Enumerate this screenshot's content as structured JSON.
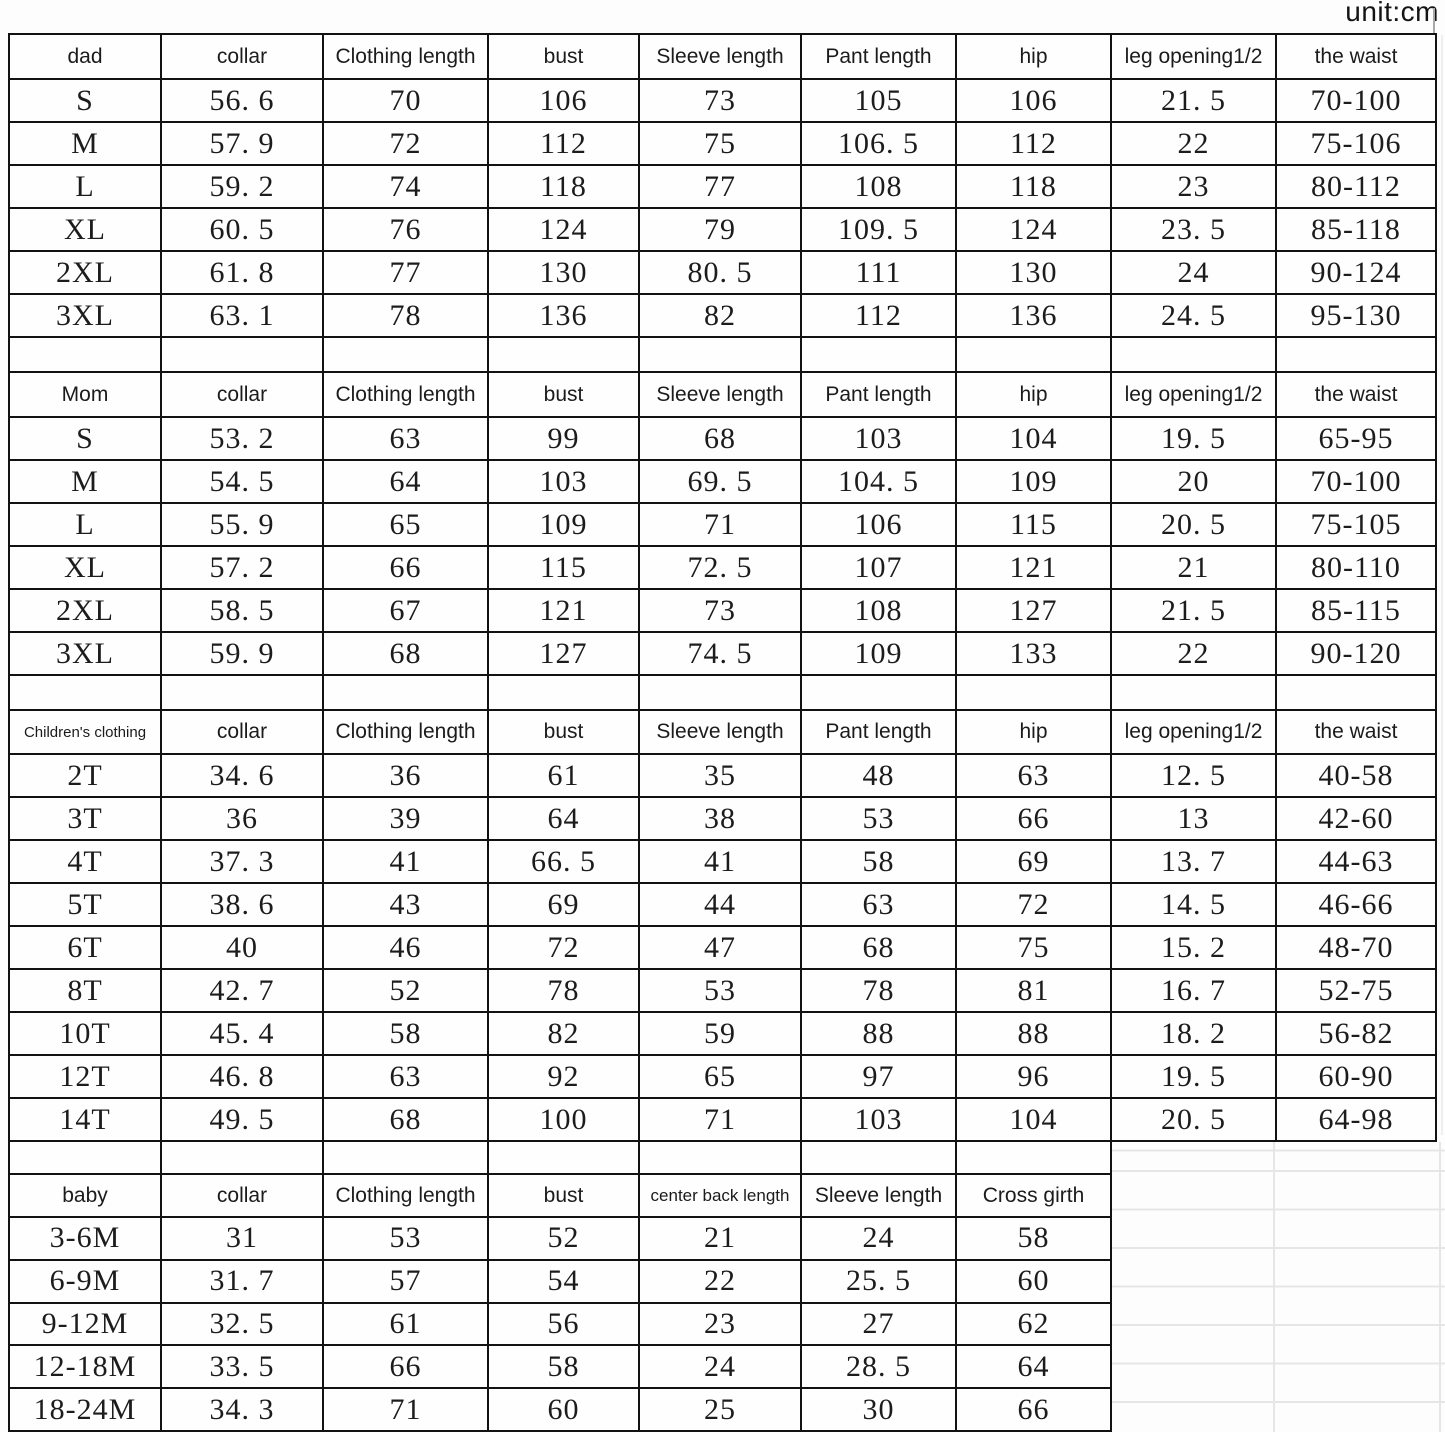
{
  "unit_label": "unit:cm",
  "table": {
    "sections": [
      {
        "name": "dad",
        "columns": [
          "dad",
          "collar",
          "Clothing length",
          "bust",
          "Sleeve length",
          "Pant length",
          "hip",
          "leg opening1/2",
          "the waist"
        ],
        "rows": [
          [
            "S",
            "56. 6",
            "70",
            "106",
            "73",
            "105",
            "106",
            "21. 5",
            "70-100"
          ],
          [
            "M",
            "57. 9",
            "72",
            "112",
            "75",
            "106. 5",
            "112",
            "22",
            "75-106"
          ],
          [
            "L",
            "59. 2",
            "74",
            "118",
            "77",
            "108",
            "118",
            "23",
            "80-112"
          ],
          [
            "XL",
            "60. 5",
            "76",
            "124",
            "79",
            "109. 5",
            "124",
            "23. 5",
            "85-118"
          ],
          [
            "2XL",
            "61. 8",
            "77",
            "130",
            "80. 5",
            "111",
            "130",
            "24",
            "90-124"
          ],
          [
            "3XL",
            "63. 1",
            "78",
            "136",
            "82",
            "112",
            "136",
            "24. 5",
            "95-130"
          ]
        ]
      },
      {
        "name": "Mom",
        "columns": [
          "Mom",
          "collar",
          "Clothing length",
          "bust",
          "Sleeve length",
          "Pant length",
          "hip",
          "leg opening1/2",
          "the waist"
        ],
        "rows": [
          [
            "S",
            "53. 2",
            "63",
            "99",
            "68",
            "103",
            "104",
            "19. 5",
            "65-95"
          ],
          [
            "M",
            "54. 5",
            "64",
            "103",
            "69. 5",
            "104. 5",
            "109",
            "20",
            "70-100"
          ],
          [
            "L",
            "55. 9",
            "65",
            "109",
            "71",
            "106",
            "115",
            "20. 5",
            "75-105"
          ],
          [
            "XL",
            "57. 2",
            "66",
            "115",
            "72. 5",
            "107",
            "121",
            "21",
            "80-110"
          ],
          [
            "2XL",
            "58. 5",
            "67",
            "121",
            "73",
            "108",
            "127",
            "21. 5",
            "85-115"
          ],
          [
            "3XL",
            "59. 9",
            "68",
            "127",
            "74. 5",
            "109",
            "133",
            "22",
            "90-120"
          ]
        ]
      },
      {
        "name": "Children's clothing",
        "columns": [
          "Children's clothing",
          "collar",
          "Clothing length",
          "bust",
          "Sleeve length",
          "Pant length",
          "hip",
          "leg opening1/2",
          "the waist"
        ],
        "rows": [
          [
            "2T",
            "34. 6",
            "36",
            "61",
            "35",
            "48",
            "63",
            "12. 5",
            "40-58"
          ],
          [
            "3T",
            "36",
            "39",
            "64",
            "38",
            "53",
            "66",
            "13",
            "42-60"
          ],
          [
            "4T",
            "37. 3",
            "41",
            "66. 5",
            "41",
            "58",
            "69",
            "13. 7",
            "44-63"
          ],
          [
            "5T",
            "38. 6",
            "43",
            "69",
            "44",
            "63",
            "72",
            "14. 5",
            "46-66"
          ],
          [
            "6T",
            "40",
            "46",
            "72",
            "47",
            "68",
            "75",
            "15. 2",
            "48-70"
          ],
          [
            "8T",
            "42. 7",
            "52",
            "78",
            "53",
            "78",
            "81",
            "16. 7",
            "52-75"
          ],
          [
            "10T",
            "45. 4",
            "58",
            "82",
            "59",
            "88",
            "88",
            "18. 2",
            "56-82"
          ],
          [
            "12T",
            "46. 8",
            "63",
            "92",
            "65",
            "97",
            "96",
            "19. 5",
            "60-90"
          ],
          [
            "14T",
            "49. 5",
            "68",
            "100",
            "71",
            "103",
            "104",
            "20. 5",
            "64-98"
          ]
        ]
      },
      {
        "name": "baby",
        "columns": [
          "baby",
          "collar",
          "Clothing length",
          "bust",
          "center back length",
          "Sleeve length",
          "Cross girth"
        ],
        "rows": [
          [
            "3-6M",
            "31",
            "53",
            "52",
            "21",
            "24",
            "58"
          ],
          [
            "6-9M",
            "31. 7",
            "57",
            "54",
            "22",
            "25. 5",
            "60"
          ],
          [
            "9-12M",
            "32. 5",
            "61",
            "56",
            "23",
            "27",
            "62"
          ],
          [
            "12-18M",
            "33. 5",
            "66",
            "58",
            "24",
            "28. 5",
            "64"
          ],
          [
            "18-24M",
            "34. 3",
            "71",
            "60",
            "25",
            "30",
            "66"
          ]
        ]
      }
    ]
  }
}
